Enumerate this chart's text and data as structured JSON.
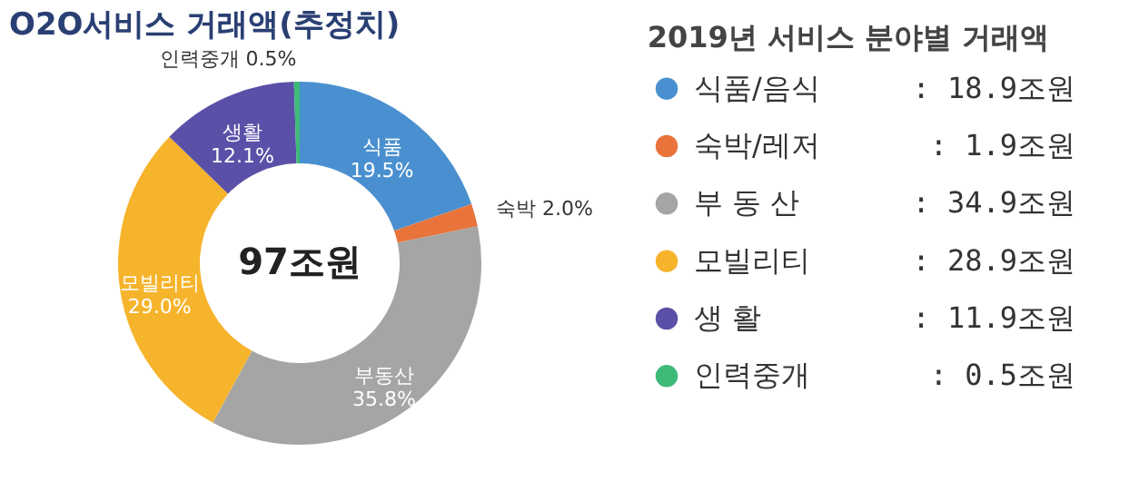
{
  "chart_data": [
    {
      "type": "donut",
      "title": "O2O서비스 거래액(추정치)",
      "annotations": [
        "97조원"
      ],
      "categories": [
        "식품",
        "숙박",
        "부동산",
        "모빌리티",
        "생활",
        "인력중개"
      ],
      "values": [
        19.5,
        2.0,
        35.8,
        29.0,
        12.1,
        0.5
      ],
      "value_labels": [
        "19.5%",
        "2.0%",
        "35.8%",
        "29.0%",
        "12.1%",
        "0.5%"
      ],
      "colors": [
        "#4a90d0",
        "#e8743b",
        "#a5a5a5",
        "#f6b42c",
        "#5b50a8",
        "#3dba78"
      ]
    },
    {
      "type": "other",
      "title": "2019년 서비스 분야별 거래액",
      "categories": [
        "식품/음식",
        "숙박/레저",
        "부 동 산",
        "모빌리티",
        "생    활",
        "인력중개"
      ],
      "values": [
        18.9,
        1.9,
        34.9,
        28.9,
        11.9,
        0.5
      ],
      "value_labels": [
        ":  18.9조원",
        ":   1.9조원",
        ":  34.9조원",
        ":  28.9조원",
        ":  11.9조원",
        ":   0.5조원"
      ],
      "colors": [
        "#4a90d0",
        "#e8743b",
        "#a5a5a5",
        "#f6b42c",
        "#5b50a8",
        "#3dba78"
      ]
    }
  ]
}
